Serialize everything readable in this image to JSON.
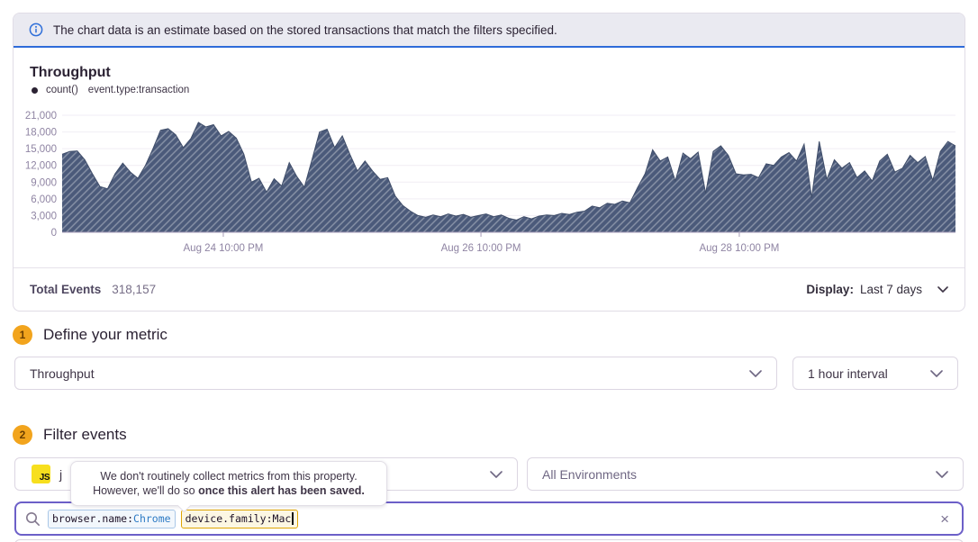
{
  "banner": {
    "text": "The chart data is an estimate based on the stored transactions that match the filters specified."
  },
  "chart": {
    "title": "Throughput",
    "legend": {
      "series_name": "count()",
      "filter": "event.type:transaction"
    }
  },
  "chart_data": {
    "type": "area",
    "title": "Throughput",
    "series": [
      {
        "name": "count() event.type:transaction",
        "values": [
          14000,
          14500,
          14600,
          13000,
          10500,
          8200,
          7800,
          10500,
          12400,
          10800,
          9700,
          12000,
          15000,
          18300,
          18600,
          17500,
          15200,
          16800,
          19700,
          18900,
          19300,
          17300,
          18100,
          16900,
          14000,
          9000,
          9700,
          7200,
          9600,
          8300,
          12500,
          10000,
          8100,
          13000,
          18000,
          18500,
          15200,
          17300,
          14000,
          11000,
          12800,
          11000,
          9500,
          9800,
          6500,
          4800,
          3800,
          3000,
          2700,
          3100,
          2800,
          3300,
          2900,
          3200,
          2700,
          3000,
          3300,
          2800,
          3100,
          2500,
          2200,
          2800,
          2400,
          2900,
          3100,
          3000,
          3400,
          3200,
          3600,
          3800,
          4700,
          4400,
          5200,
          5000,
          5600,
          5300,
          8000,
          10500,
          14800,
          12800,
          13500,
          9200,
          14200,
          13200,
          14400,
          7000,
          14500,
          15500,
          13800,
          10500,
          10300,
          10400,
          9800,
          12300,
          12000,
          13500,
          14300,
          12800,
          15800,
          6200,
          16300,
          9500,
          13000,
          11500,
          12500,
          9800,
          11000,
          9200,
          12800,
          14000,
          10800,
          11500,
          13800,
          12500,
          13600,
          9300,
          14500,
          16300,
          15500
        ]
      }
    ],
    "ylim": [
      0,
      21000
    ],
    "y_tick_values": [
      21000,
      18000,
      15000,
      12000,
      9000,
      6000,
      3000,
      0
    ],
    "y_tick_labels": [
      "21,000",
      "18,000",
      "15,000",
      "12,000",
      "9,000",
      "6,000",
      "3,000",
      "0"
    ],
    "x_tick_labels": [
      "Aug 24 10:00 PM",
      "Aug 26 10:00 PM",
      "Aug 28 10:00 PM"
    ],
    "x_tick_pos": [
      0.1804,
      0.4688,
      0.758
    ],
    "grid": true,
    "hatch": true,
    "legend_position": "top-left",
    "colors": {
      "fill": "#4b5a7a",
      "hatch_line": "rgba(255,255,255,0.35)",
      "stroke": "#3f4d69",
      "grid": "#f1eef4",
      "axis": "#a79cb8",
      "tick_text": "#8f84a3"
    }
  },
  "totals": {
    "label": "Total Events",
    "value": "318,157",
    "display_label": "Display:",
    "display_value": "Last 7 days"
  },
  "sections": {
    "metric": {
      "number": "1",
      "title": "Define your metric",
      "metric_select_value": "Throughput",
      "interval_select_value": "1 hour interval"
    },
    "filter": {
      "number": "2",
      "title": "Filter events",
      "project_icon": "JS",
      "project_label": "j",
      "environment_select_value": "All Environments"
    }
  },
  "tooltip": {
    "line1": "We don't routinely collect metrics from this property.",
    "line2_prefix": "However, we'll do so ",
    "line2_bold": "once this alert has been saved."
  },
  "search": {
    "tokens": [
      {
        "key": "browser.name",
        "separator": ":",
        "value": "Chrome"
      },
      {
        "key": "device.family",
        "separator": ":",
        "value": "Mac"
      }
    ],
    "clear_label": "×"
  },
  "colors": {
    "accent_purple": "#6c5fc8",
    "banner_blue": "#2e6bd9",
    "badge_orange": "#f2a41d",
    "js_yellow": "#f7df1e",
    "token_warning_border": "#dfa502",
    "token_blue_border": "#a9c7e7"
  }
}
